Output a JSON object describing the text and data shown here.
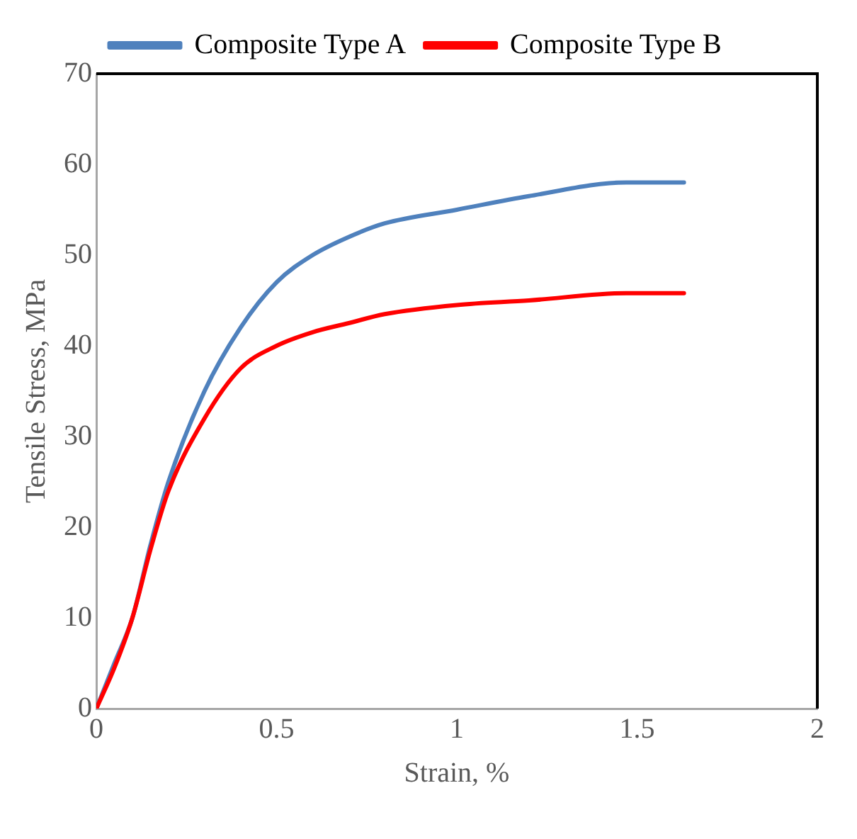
{
  "chart_data": {
    "type": "line",
    "xlabel": "Strain, %",
    "ylabel": "Tensile Stress, MPa",
    "xlim": [
      0,
      2
    ],
    "xticks": [
      0,
      0.5,
      1,
      1.5,
      2
    ],
    "ylim": [
      0,
      70
    ],
    "yticks": [
      0,
      10,
      20,
      30,
      40,
      50,
      60,
      70
    ],
    "grid": false,
    "legend": "top",
    "marker": "none",
    "line_style": "solid",
    "series": [
      {
        "name": "Composite Type A",
        "color": "#4f81bd",
        "x": [
          0,
          0.05,
          0.1,
          0.15,
          0.2,
          0.3,
          0.4,
          0.5,
          0.6,
          0.7,
          0.8,
          1.0,
          1.2,
          1.47,
          1.63
        ],
        "values": [
          0,
          5,
          10,
          18,
          25,
          35,
          42,
          47,
          50,
          52,
          53.5,
          55,
          56.5,
          58,
          58
        ]
      },
      {
        "name": "Composite Type B",
        "color": "#ff0000",
        "x": [
          0,
          0.05,
          0.1,
          0.15,
          0.2,
          0.3,
          0.4,
          0.5,
          0.6,
          0.7,
          0.8,
          1.0,
          1.2,
          1.47,
          1.63
        ],
        "values": [
          0,
          4.5,
          10,
          17.5,
          24,
          32,
          37.5,
          40,
          41.5,
          42.5,
          43.5,
          44.5,
          45,
          45.8,
          45.8
        ]
      }
    ]
  }
}
